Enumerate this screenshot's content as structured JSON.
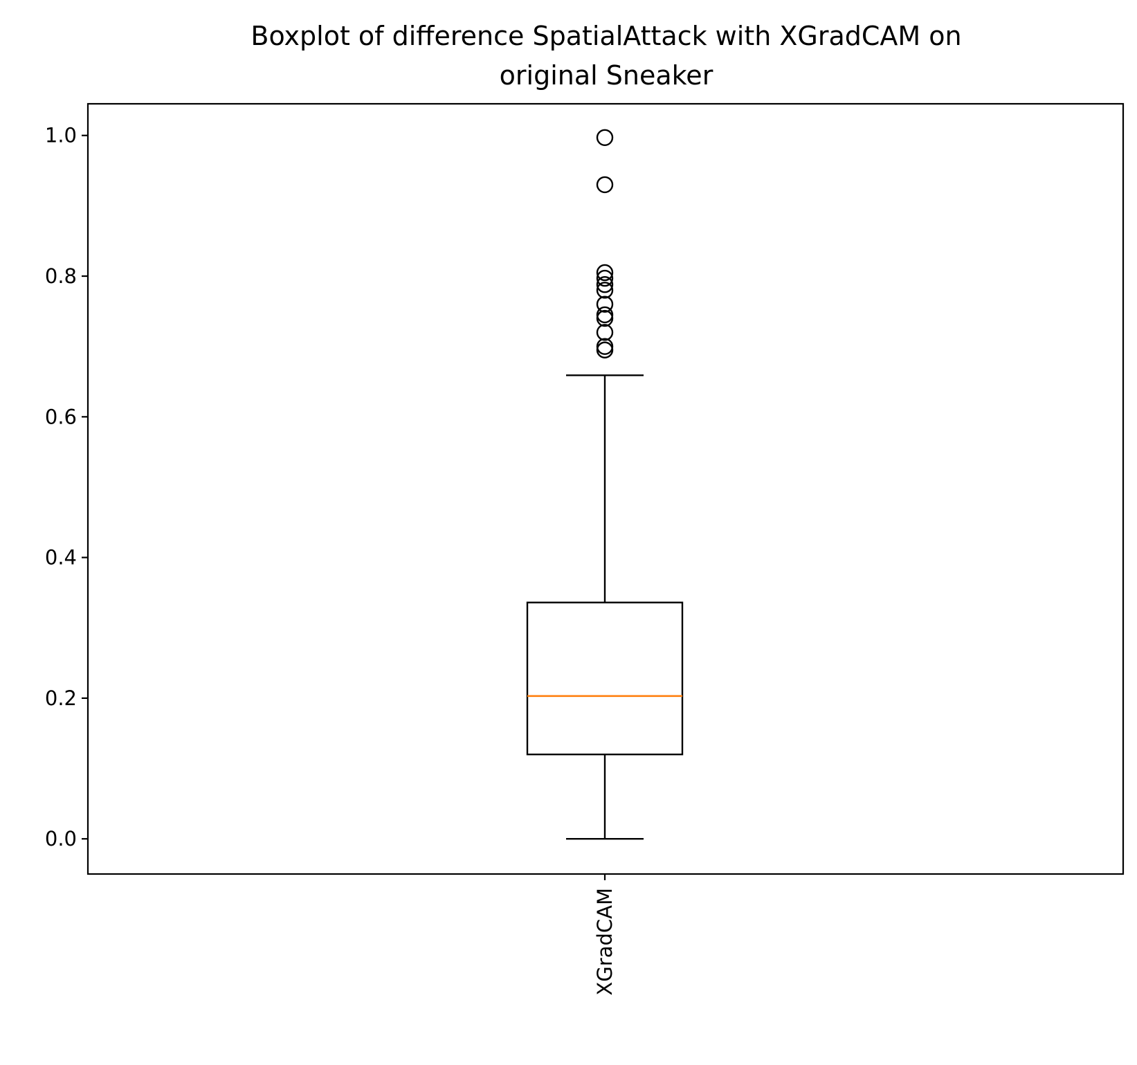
{
  "chart_data": {
    "type": "boxplot",
    "title_lines": [
      "Boxplot of difference SpatialAttack with XGradCAM on",
      "original Sneaker"
    ],
    "xlabel": "",
    "ylabel": "",
    "categories": [
      "XGradCAM"
    ],
    "ylim": [
      -0.05,
      1.045
    ],
    "yticks": [
      0.0,
      0.2,
      0.4,
      0.6,
      0.8,
      1.0
    ],
    "ytick_labels": [
      "0.0",
      "0.2",
      "0.4",
      "0.6",
      "0.8",
      "1.0"
    ],
    "grid": false,
    "legend": "none",
    "boxes": [
      {
        "name": "XGradCAM",
        "whisker_low": 0.0,
        "q1": 0.12,
        "median": 0.203,
        "q3": 0.336,
        "whisker_high": 0.659,
        "outliers": [
          0.997,
          0.93,
          0.805,
          0.797,
          0.788,
          0.78,
          0.76,
          0.745,
          0.74,
          0.72,
          0.7,
          0.695
        ]
      }
    ],
    "colors": {
      "box": "#000000",
      "median": "#ff7f0e",
      "outlier": "#000000"
    }
  }
}
